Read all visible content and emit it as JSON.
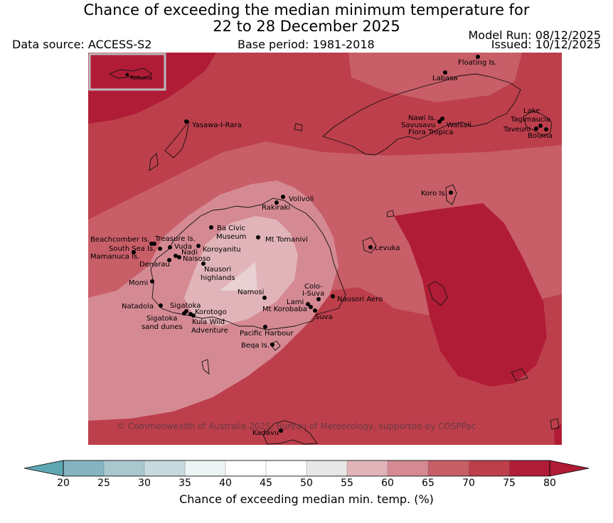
{
  "title": {
    "line1": "Chance of exceeding the median minimum temperature for",
    "line2": "22 to 28 December 2025"
  },
  "meta": {
    "data_source": "Data source: ACCESS-S2",
    "base_period": "Base period: 1981-2018",
    "model_run": "Model Run: 08/12/2025",
    "issued": "Issued: 10/12/2025"
  },
  "inset": {
    "label": "Rotuma"
  },
  "places": [
    {
      "name": "Floating Is."
    },
    {
      "name": "Labasa"
    },
    {
      "name": "Yasawa-I-Rara"
    },
    {
      "name": "Nawi Is."
    },
    {
      "name": "Savusavu"
    },
    {
      "name": "Waisali"
    },
    {
      "name": "Flora Tropica"
    },
    {
      "name": "Lake"
    },
    {
      "name": "Tagimaucia"
    },
    {
      "name": "Taveuni"
    },
    {
      "name": "Bouma"
    },
    {
      "name": "Koro Is."
    },
    {
      "name": "Volivoli"
    },
    {
      "name": "Rakiraki"
    },
    {
      "name": "Ba Civic"
    },
    {
      "name": "Museum"
    },
    {
      "name": "Mt Tomanivi"
    },
    {
      "name": "Beachcomber Is."
    },
    {
      "name": "Treasure Is."
    },
    {
      "name": "South Sea Is."
    },
    {
      "name": "Vuda"
    },
    {
      "name": "Koroyanitu"
    },
    {
      "name": "Nadi"
    },
    {
      "name": "Mamanuca Is."
    },
    {
      "name": "Naisoso"
    },
    {
      "name": "Denarau"
    },
    {
      "name": "Nausori"
    },
    {
      "name": "highlands"
    },
    {
      "name": "Levuka"
    },
    {
      "name": "Momi"
    },
    {
      "name": "Colo-"
    },
    {
      "name": "I-Suva"
    },
    {
      "name": "Namosi"
    },
    {
      "name": "Lami"
    },
    {
      "name": "Nausori Aero"
    },
    {
      "name": "Mt Korobaba"
    },
    {
      "name": "Suva"
    },
    {
      "name": "Natadola"
    },
    {
      "name": "Sigatoka"
    },
    {
      "name": "Korotogo"
    },
    {
      "name": "sand dunes"
    },
    {
      "name": "Kula Wild"
    },
    {
      "name": "Adventure"
    },
    {
      "name": "Pacific Harbour"
    },
    {
      "name": "Beqa Is."
    },
    {
      "name": "Kadavu"
    }
  ],
  "copyright": "© Commonwealth of Australia 2025, Bureau of Meteorology, supported by COSPPac",
  "colorbar": {
    "label": "Chance of exceeding median min. temp. (%)",
    "ticks": [
      "20",
      "25",
      "30",
      "35",
      "40",
      "45",
      "50",
      "55",
      "60",
      "65",
      "70",
      "75",
      "80"
    ],
    "colors": [
      "#5fa6b3",
      "#86b4c0",
      "#a8c8cd",
      "#c8dadf",
      "#eef3f6",
      "#ffffff",
      "#ffffff",
      "#e8e8e8",
      "#e1b4b9",
      "#d58a93",
      "#c85e68",
      "#bd3f4c",
      "#b01c36"
    ]
  },
  "fill_colors": {
    "c60": "#e1b4b9",
    "c65": "#d58a93",
    "c70": "#c85e68",
    "c75": "#bd3f4c",
    "c80": "#b01c36"
  }
}
